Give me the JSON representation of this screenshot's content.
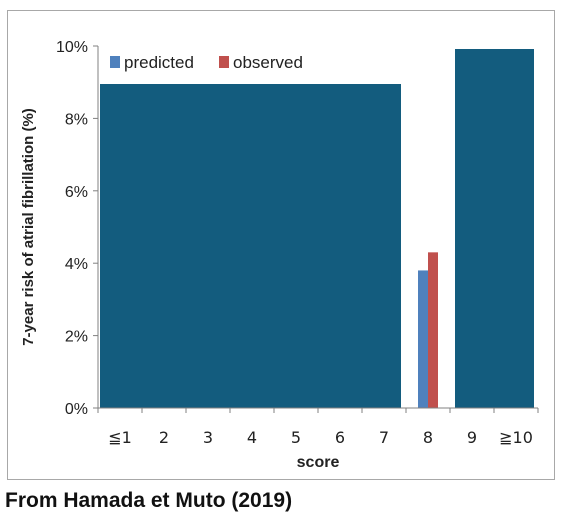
{
  "caption": "From Hamada et Muto (2019)",
  "colors": {
    "occlusion": "#135c7e",
    "predicted": "#4f81bd",
    "observed": "#c0504d",
    "axis": "#808080",
    "text": "#222222"
  },
  "chart_data": {
    "type": "bar",
    "xlabel": "score",
    "ylabel": "7-year risk of atrial fibrillation (%)",
    "categories": [
      "≦1",
      "2",
      "3",
      "4",
      "5",
      "6",
      "7",
      "8",
      "9",
      "≧10"
    ],
    "ylim": [
      0,
      10
    ],
    "yticks": [
      "0%",
      "2%",
      "4%",
      "6%",
      "8%",
      "10%"
    ],
    "legend_position": "top-left",
    "grid": false,
    "series": [
      {
        "name": "predicted",
        "color": "#4f81bd",
        "values": [
          null,
          null,
          null,
          null,
          null,
          null,
          null,
          3.8,
          null,
          null
        ]
      },
      {
        "name": "observed",
        "color": "#c0504d",
        "values": [
          null,
          null,
          null,
          null,
          null,
          null,
          null,
          4.3,
          null,
          null
        ]
      }
    ],
    "note": "Only the score 8 bars are visible; the other categories are covered by solid blocks."
  }
}
